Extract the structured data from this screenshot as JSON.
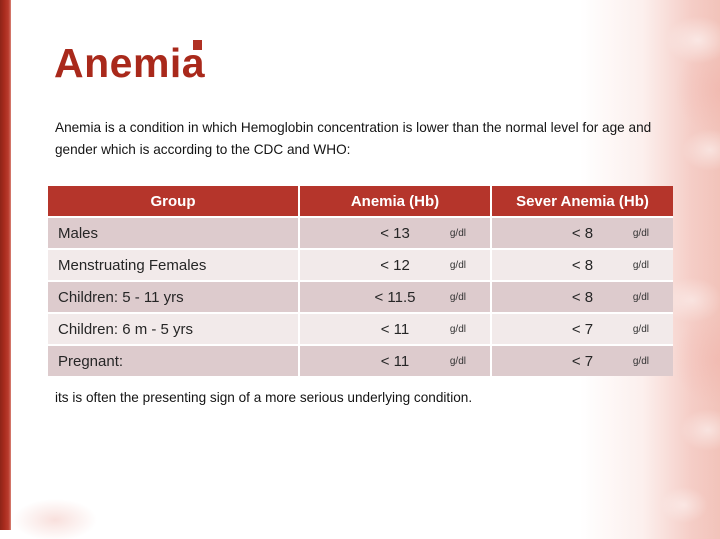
{
  "slide": {
    "title": "Anemia",
    "intro": "Anemia is a condition in which Hemoglobin concentration is lower than the normal level for age and gender which is according to the CDC and WHO:",
    "footer": "its is often the presenting sign of a more serious underlying condition."
  },
  "table": {
    "columns": [
      "Group",
      "Anemia (Hb)",
      "Sever Anemia (Hb)"
    ],
    "unit": "g/dl",
    "rows": [
      {
        "group": "Males",
        "anemia": "< 13",
        "severe": "< 8"
      },
      {
        "group": "Menstruating Females",
        "anemia": "< 12",
        "severe": "< 8"
      },
      {
        "group": "Children: 5 - 11 yrs",
        "anemia": "< 11.5",
        "severe": "< 8"
      },
      {
        "group": "Children: 6 m - 5 yrs",
        "anemia": "< 11",
        "severe": "< 7"
      },
      {
        "group": "Pregnant:",
        "anemia": "< 11",
        "severe": "< 7"
      }
    ]
  },
  "colors": {
    "accent_red": "#a9291b",
    "table_header_red": "#b5352b",
    "row_dark": "#ddcbcd",
    "row_light": "#f2eaea",
    "edge_pink": "#f2c3ba",
    "text": "#141414"
  }
}
